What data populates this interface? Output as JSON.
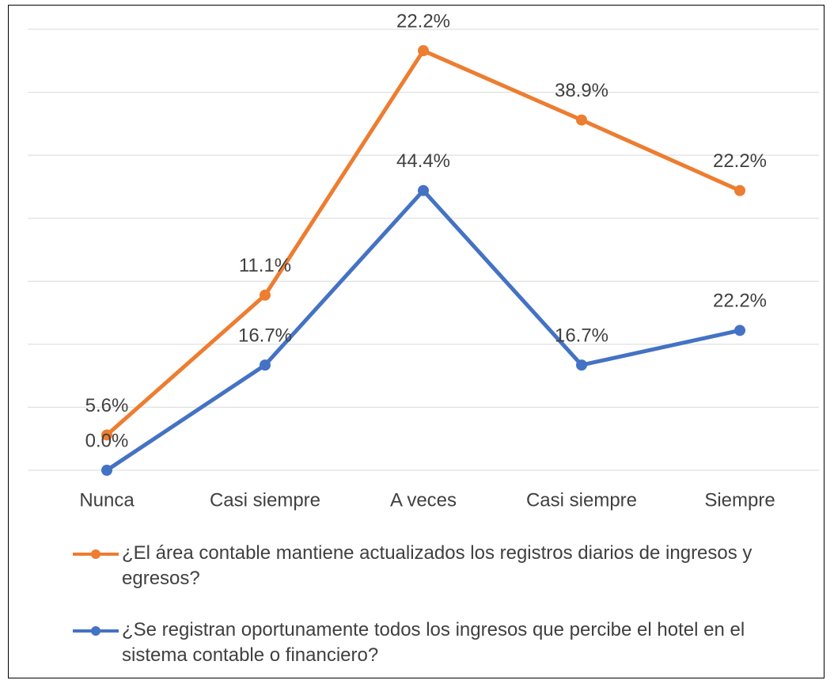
{
  "chart_data": {
    "type": "line",
    "stacked": true,
    "categories": [
      "Nunca",
      "Casi siempre",
      "A veces",
      "Casi siempre",
      "Siempre"
    ],
    "series": [
      {
        "name": "¿El área contable mantiene actualizados los registros diarios de ingresos y egresos?",
        "color": "#ED7D31",
        "values": [
          5.6,
          11.1,
          22.2,
          38.9,
          22.2
        ],
        "value_labels": [
          "5.6%",
          "11.1%",
          "22.2%",
          "38.9%",
          "22.2%"
        ]
      },
      {
        "name": "¿Se registran oportunamente todos los ingresos que percibe el hotel en el sistema contable o financiero?",
        "color": "#4472C4",
        "values": [
          0.0,
          16.7,
          44.4,
          16.7,
          22.2
        ],
        "value_labels": [
          "0.0%",
          "16.7%",
          "44.4%",
          "16.7%",
          "22.2%"
        ]
      }
    ],
    "ylim": [
      0,
      70
    ],
    "yticks": [
      0,
      10,
      20,
      30,
      40,
      50,
      60,
      70
    ],
    "grid": true
  }
}
